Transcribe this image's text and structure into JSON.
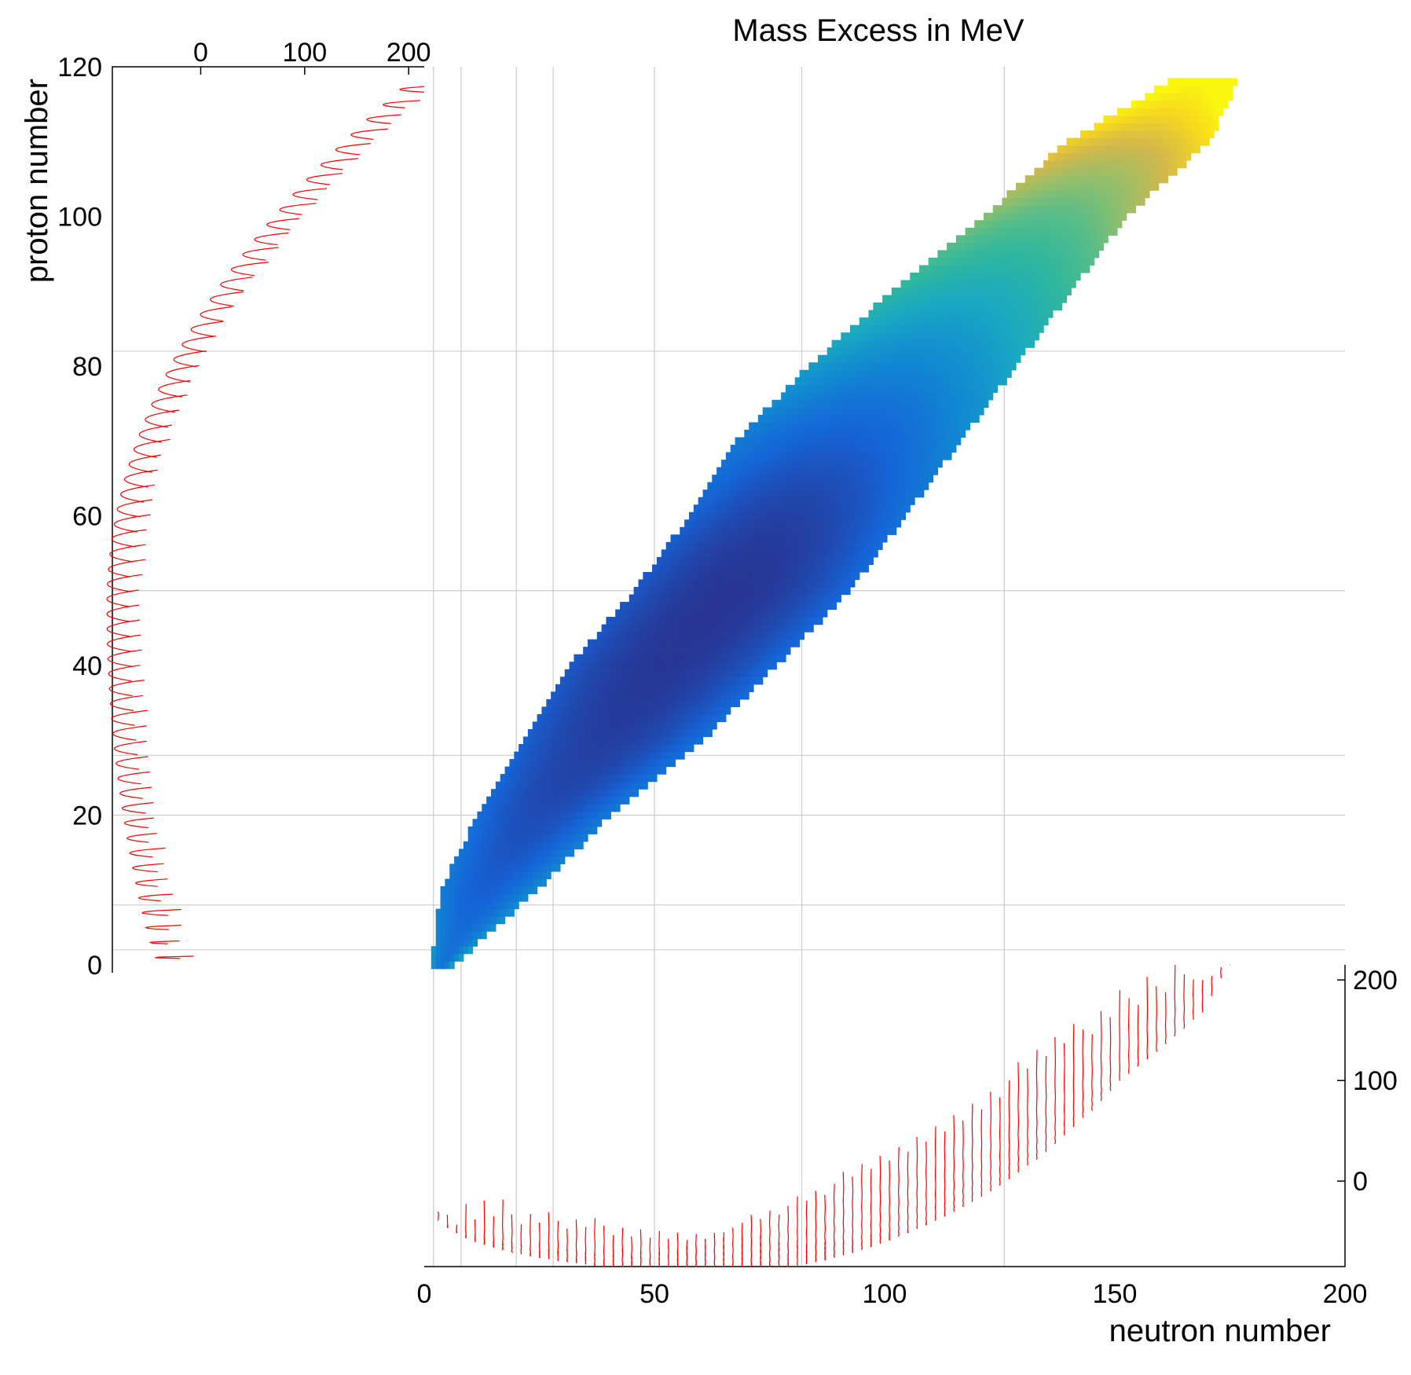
{
  "chart_data": [
    {
      "type": "heatmap",
      "title": "Mass Excess in MeV",
      "xlabel": "neutron number",
      "ylabel": "proton number",
      "xlim": [
        0,
        200
      ],
      "ylim": [
        0,
        120
      ],
      "x_ticks": [
        "0",
        "50",
        "100",
        "150",
        "200"
      ],
      "y_ticks": [
        "0",
        "20",
        "40",
        "60",
        "80",
        "100",
        "120"
      ],
      "grid_lines": {
        "neutron_number": [
          2,
          8,
          20,
          28,
          50,
          82,
          126
        ],
        "proton_number": [
          2,
          8,
          20,
          28,
          50,
          82
        ]
      },
      "colormap": [
        "#283593",
        "#1565d8",
        "#118ad1",
        "#19a8c3",
        "#2db6a0",
        "#56bd89",
        "#97be6a",
        "#d4b84a",
        "#f7d81f",
        "#f9f70e"
      ],
      "color_range_MeV": [
        -90,
        200
      ],
      "region": {
        "neutron_min_max_by_proton": [
          [
            0,
            2,
            6
          ],
          [
            10,
            4,
            24
          ],
          [
            20,
            12,
            40
          ],
          [
            30,
            22,
            60
          ],
          [
            40,
            32,
            76
          ],
          [
            50,
            46,
            92
          ],
          [
            60,
            58,
            104
          ],
          [
            70,
            68,
            116
          ],
          [
            80,
            84,
            128
          ],
          [
            90,
            102,
            140
          ],
          [
            100,
            122,
            152
          ],
          [
            110,
            140,
            170
          ],
          [
            118,
            162,
            176
          ]
        ],
        "min_mass_excess_MeV": {
          "proton": 48,
          "neutron": 70,
          "value": -90
        },
        "max_mass_excess_MeV": {
          "proton": 118,
          "neutron": 176,
          "value": 200
        }
      }
    },
    {
      "type": "line",
      "panel": "left projection: mass excess vs proton number",
      "x_ticks": [
        "0",
        "100",
        "200"
      ],
      "xlim": [
        -85,
        215
      ],
      "ylim": [
        0,
        120
      ],
      "series_colors": [
        "#000000",
        "#ff0000"
      ]
    },
    {
      "type": "line",
      "panel": "bottom projection: mass excess vs neutron number",
      "y_ticks": [
        "0",
        "100",
        "200"
      ],
      "xlim": [
        0,
        200
      ],
      "ylim": [
        -85,
        215
      ],
      "series_colors": [
        "#000000",
        "#ff0000"
      ]
    }
  ]
}
